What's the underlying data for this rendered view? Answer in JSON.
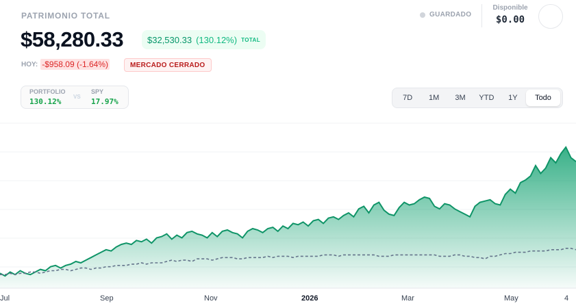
{
  "header": {
    "title": "PATRIMONIO TOTAL",
    "saved_label": "GUARDADO",
    "available_label": "Disponible",
    "available_value": "$0.00"
  },
  "summary": {
    "total_value": "$58,280.33",
    "gain_amount": "$32,530.33",
    "gain_pct": "(130.12%)",
    "gain_tag": "TOTAL",
    "today_label": "HOY:",
    "today_change": "-$958.09 (-1.64%)",
    "market_status": "MERCADO CERRADO"
  },
  "comparison": {
    "portfolio_label": "PORTFOLIO",
    "portfolio_value": "130.12%",
    "vs_label": "VS",
    "benchmark_label": "SPY",
    "benchmark_value": "17.97%"
  },
  "ranges": [
    {
      "label": "7D",
      "active": false
    },
    {
      "label": "1M",
      "active": false
    },
    {
      "label": "3M",
      "active": false
    },
    {
      "label": "YTD",
      "active": false
    },
    {
      "label": "1Y",
      "active": false
    },
    {
      "label": "Todo",
      "active": true
    }
  ],
  "colors": {
    "portfolio_line": "#0f9467",
    "benchmark_line": "#64748b",
    "gain": "#059669",
    "loss": "#dc2626"
  },
  "chart_data": {
    "type": "area",
    "x_tick_labels": [
      "Jul",
      "Sep",
      "Nov",
      "2026",
      "Mar",
      "May",
      "4"
    ],
    "ylim": [
      0,
      100
    ],
    "grid": true,
    "legend": "none",
    "series": [
      {
        "values": [
          4,
          2,
          5,
          3,
          6,
          4,
          3,
          5,
          7,
          6,
          9,
          10,
          8,
          10,
          11,
          13,
          12,
          14,
          16,
          18,
          20,
          22,
          21,
          24,
          26,
          27,
          26,
          29,
          28,
          30,
          27,
          31,
          32,
          34,
          30,
          33,
          31,
          35,
          36,
          34,
          33,
          31,
          35,
          32,
          36,
          37,
          35,
          34,
          31,
          36,
          38,
          37,
          35,
          38,
          39,
          36,
          40,
          38,
          42,
          41,
          43,
          40,
          44,
          45,
          42,
          46,
          47,
          45,
          48,
          50,
          47,
          53,
          55,
          50,
          56,
          58,
          52,
          49,
          48,
          54,
          58,
          56,
          57,
          60,
          62,
          61,
          55,
          53,
          57,
          56,
          53,
          51,
          49,
          47,
          55,
          58,
          59,
          60,
          57,
          56,
          64,
          68,
          65,
          73,
          75,
          78,
          86,
          80,
          84,
          92,
          88,
          95,
          100,
          92,
          89
        ]
      },
      {
        "values": [
          3,
          3,
          4,
          3,
          4,
          4,
          5,
          5,
          4,
          5,
          6,
          6,
          7,
          7,
          6,
          7,
          8,
          8,
          7,
          8,
          8,
          9,
          9,
          10,
          10,
          10,
          11,
          11,
          12,
          11,
          12,
          12,
          12,
          13,
          14,
          13,
          14,
          14,
          13,
          15,
          15,
          15,
          14,
          15,
          16,
          16,
          16,
          15,
          15,
          16,
          16,
          16,
          16,
          17,
          16,
          17,
          17,
          17,
          16,
          17,
          17,
          17,
          17,
          17,
          18,
          18,
          18,
          17,
          18,
          18,
          18,
          18,
          18,
          18,
          18,
          17,
          17,
          17,
          18,
          18,
          18,
          18,
          18,
          18,
          18,
          18,
          18,
          17,
          17,
          17,
          18,
          18,
          17,
          17,
          16,
          16,
          15,
          17,
          17,
          18,
          19,
          19,
          20,
          20,
          20,
          21,
          21,
          21,
          21,
          22,
          22,
          22,
          23,
          23,
          22
        ]
      }
    ]
  }
}
